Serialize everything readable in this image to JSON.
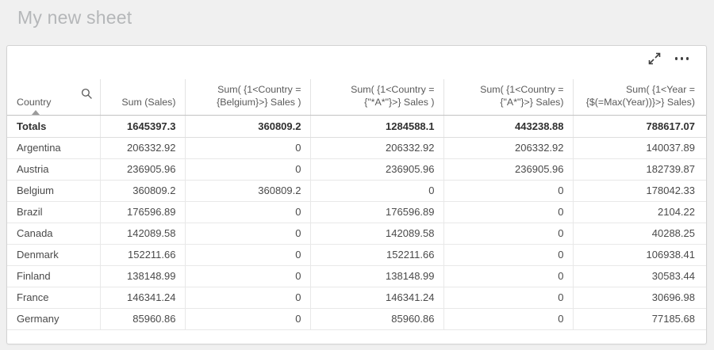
{
  "page": {
    "title": "My new sheet"
  },
  "toolbar": {
    "icons": [
      {
        "name": "fullscreen-icon"
      },
      {
        "name": "more-menu-icon"
      }
    ]
  },
  "table": {
    "columns": [
      {
        "label": "Country",
        "align": "left",
        "sorted_ascending": true,
        "searchable": true
      },
      {
        "label": "Sum (Sales)",
        "align": "right"
      },
      {
        "label": "Sum( {1<Country = {Belgium}>} Sales )",
        "align": "right"
      },
      {
        "label": "Sum( {1<Country = {\"*A*\"}>} Sales )",
        "align": "right"
      },
      {
        "label": "Sum( {1<Country = {\"A*\"}>} Sales)",
        "align": "right"
      },
      {
        "label": "Sum( {1<Year = {$(=Max(Year))}>} Sales)",
        "align": "right"
      }
    ],
    "totals_label": "Totals",
    "totals": [
      "1645397.3",
      "360809.2",
      "1284588.1",
      "443238.88",
      "788617.07"
    ],
    "rows": [
      {
        "country": "Argentina",
        "values": [
          "206332.92",
          "0",
          "206332.92",
          "206332.92",
          "140037.89"
        ]
      },
      {
        "country": "Austria",
        "values": [
          "236905.96",
          "0",
          "236905.96",
          "236905.96",
          "182739.87"
        ]
      },
      {
        "country": "Belgium",
        "values": [
          "360809.2",
          "360809.2",
          "0",
          "0",
          "178042.33"
        ]
      },
      {
        "country": "Brazil",
        "values": [
          "176596.89",
          "0",
          "176596.89",
          "0",
          "2104.22"
        ]
      },
      {
        "country": "Canada",
        "values": [
          "142089.58",
          "0",
          "142089.58",
          "0",
          "40288.25"
        ]
      },
      {
        "country": "Denmark",
        "values": [
          "152211.66",
          "0",
          "152211.66",
          "0",
          "106938.41"
        ]
      },
      {
        "country": "Finland",
        "values": [
          "138148.99",
          "0",
          "138148.99",
          "0",
          "30583.44"
        ]
      },
      {
        "country": "France",
        "values": [
          "146341.24",
          "0",
          "146341.24",
          "0",
          "30696.98"
        ]
      },
      {
        "country": "Germany",
        "values": [
          "85960.86",
          "0",
          "85960.86",
          "0",
          "77185.68"
        ]
      }
    ]
  },
  "colors": {
    "page_background": "#f0f0f0",
    "title_text": "#b5b7b9",
    "card_border": "#d3d3d3",
    "header_text": "#5a5a5a",
    "cell_text": "#4a4a4a",
    "icon": "#404040"
  }
}
